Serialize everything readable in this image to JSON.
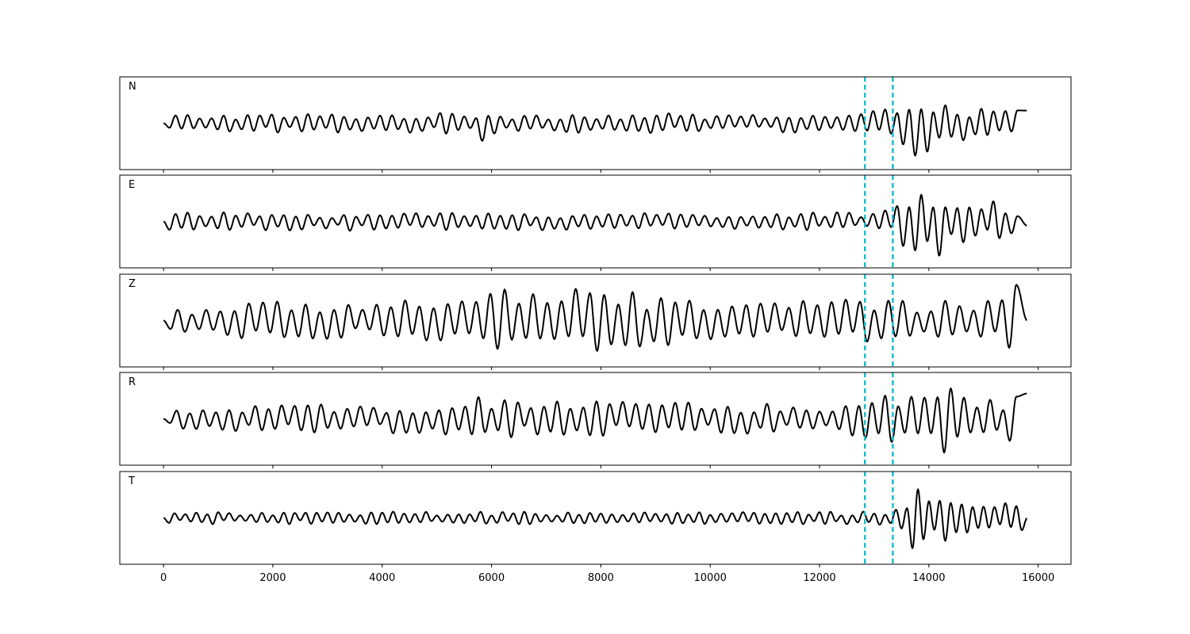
{
  "chart_data": {
    "type": "line",
    "layout": "stacked-panels",
    "sample_count": 15800,
    "xlim": [
      -800,
      16600
    ],
    "x_ticks": [
      0,
      2000,
      4000,
      6000,
      8000,
      10000,
      12000,
      14000,
      16000
    ],
    "x_tick_labels": [
      "0",
      "2000",
      "4000",
      "6000",
      "8000",
      "10000",
      "12000",
      "14000",
      "16000"
    ],
    "pick_markers": {
      "x": [
        12830,
        13340
      ],
      "color": "#17becf",
      "style": "dashed"
    },
    "trace_color": "#000000",
    "grid": false,
    "legend": "none",
    "panels": [
      {
        "label": "N",
        "ylim": [
          -1.1,
          1.1
        ],
        "envelope": [
          [
            0,
            0.22
          ],
          [
            5700,
            0.25
          ],
          [
            5850,
            0.45
          ],
          [
            6000,
            0.25
          ],
          [
            12500,
            0.22
          ],
          [
            12900,
            0.3
          ],
          [
            13300,
            0.35
          ],
          [
            13800,
            0.85
          ],
          [
            14200,
            0.6
          ],
          [
            14800,
            0.35
          ],
          [
            15800,
            0.32
          ]
        ],
        "period": 110,
        "endpoint": 0.3
      },
      {
        "label": "E",
        "ylim": [
          -1.1,
          1.1
        ],
        "envelope": [
          [
            0,
            0.22
          ],
          [
            12500,
            0.22
          ],
          [
            12900,
            0.2
          ],
          [
            13300,
            0.3
          ],
          [
            13700,
            0.85
          ],
          [
            14200,
            0.9
          ],
          [
            14800,
            0.6
          ],
          [
            15500,
            0.4
          ],
          [
            15800,
            0.3
          ]
        ],
        "period": 110,
        "endpoint": -0.1
      },
      {
        "label": "Z",
        "ylim": [
          -1.1,
          1.1
        ],
        "envelope": [
          [
            0,
            0.3
          ],
          [
            1500,
            0.45
          ],
          [
            4000,
            0.5
          ],
          [
            5500,
            0.65
          ],
          [
            6000,
            0.8
          ],
          [
            7800,
            0.75
          ],
          [
            10000,
            0.55
          ],
          [
            12000,
            0.55
          ],
          [
            14000,
            0.45
          ],
          [
            15200,
            0.55
          ],
          [
            15600,
            0.9
          ],
          [
            15800,
            0.35
          ]
        ],
        "period": 130,
        "endpoint": 0.0
      },
      {
        "label": "R",
        "ylim": [
          -1.1,
          1.1
        ],
        "envelope": [
          [
            0,
            0.25
          ],
          [
            3000,
            0.35
          ],
          [
            5500,
            0.4
          ],
          [
            5850,
            0.6
          ],
          [
            6200,
            0.45
          ],
          [
            12500,
            0.35
          ],
          [
            13000,
            0.6
          ],
          [
            13800,
            0.9
          ],
          [
            14300,
            0.8
          ],
          [
            15000,
            0.65
          ],
          [
            15800,
            0.5
          ]
        ],
        "period": 120,
        "endpoint": 0.6
      },
      {
        "label": "T",
        "ylim": [
          -1.1,
          1.1
        ],
        "envelope": [
          [
            0,
            0.15
          ],
          [
            12800,
            0.15
          ],
          [
            13400,
            0.2
          ],
          [
            13800,
            0.9
          ],
          [
            14100,
            0.75
          ],
          [
            14800,
            0.45
          ],
          [
            15800,
            0.3
          ]
        ],
        "period": 100,
        "endpoint": 0.0
      }
    ]
  }
}
